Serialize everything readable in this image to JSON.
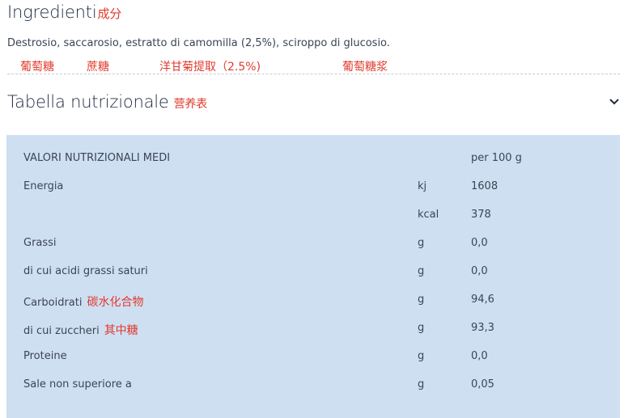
{
  "ingredients": {
    "title": "Ingredienti",
    "title_annotation": "成分",
    "text": "Destrosio, saccarosio, estratto di camomilla (2,5%), sciroppo di glucosio.",
    "annotations": [
      "葡萄糖",
      "蔗糖",
      "洋甘菊提取（2.5%)",
      "葡萄糖浆"
    ]
  },
  "nutrition": {
    "title": "Tabella nutrizionale",
    "title_annotation": "营养表",
    "toggle_icon": "chevron-down-icon",
    "header": {
      "label": "VALORI NUTRIZIONALI MEDI",
      "unit": "",
      "value": "per 100 g"
    },
    "rows": [
      {
        "label": "Energia",
        "note": "",
        "unit": "kj",
        "value": "1608"
      },
      {
        "label": "",
        "note": "",
        "unit": "kcal",
        "value": "378"
      },
      {
        "label": "Grassi",
        "note": "",
        "unit": "g",
        "value": "0,0"
      },
      {
        "label": "di cui acidi grassi saturi",
        "note": "",
        "unit": "g",
        "value": "0,0"
      },
      {
        "label": "Carboidrati",
        "note": "碳水化合物",
        "unit": "g",
        "value": "94,6"
      },
      {
        "label": "di cui zuccheri",
        "note": "其中糖",
        "unit": "g",
        "value": "93,3"
      },
      {
        "label": "Proteine",
        "note": "",
        "unit": "g",
        "value": "0,0"
      },
      {
        "label": "Sale non superiore a",
        "note": "",
        "unit": "g",
        "value": "0,05"
      }
    ]
  },
  "colors": {
    "annotation": "#e03a2c",
    "table_bg": "#cfdff2",
    "heading": "#1e2b40"
  }
}
